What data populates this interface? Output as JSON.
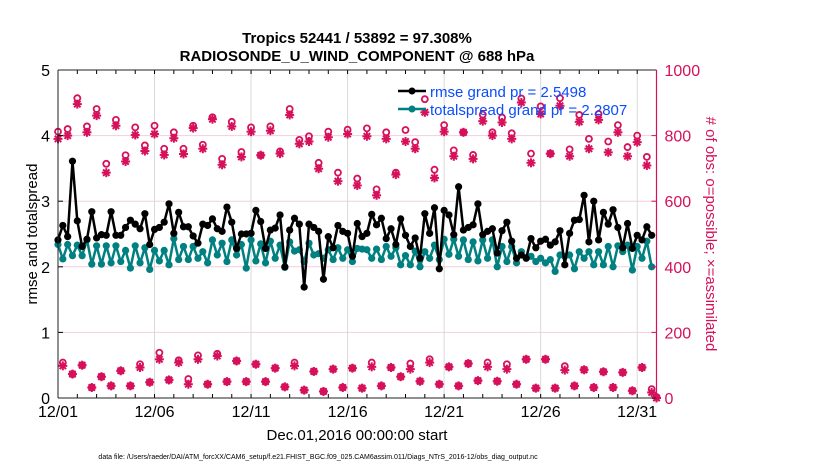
{
  "chart_data": {
    "type": "line",
    "title": [
      "Tropics 52441 / 53892 = 97.308%",
      "RADIOSONDE_U_WIND_COMPONENT @ 688 hPa"
    ],
    "xlabel": "Dec.01,2016 00:00:00 start",
    "ylabel_left": "rmse and totalspread",
    "ylabel_right": "# of obs: o=possible; ×=assimilated",
    "footer": "data file: /Users/raeder/DAI/ATM_forcXX/CAM6_setup/f.e21.FHIST_BGC.f09_025.CAM6assim.011/Diags_NTrS_2016-12/obs_diag_output.nc",
    "x_start": "Dec.01,2016 00:00:00",
    "time_step_hours": 6,
    "x_tick_labels": [
      "12/01",
      "12/06",
      "12/11",
      "12/16",
      "12/21",
      "12/26",
      "12/31"
    ],
    "xlim_days": [
      0,
      31
    ],
    "ylim_left": [
      0,
      5
    ],
    "y_ticks_left": [
      "0",
      "1",
      "2",
      "3",
      "4",
      "5"
    ],
    "ylim_right": [
      0,
      1000
    ],
    "y_ticks_right": [
      "0",
      "200",
      "400",
      "600",
      "800",
      "1000"
    ],
    "grid": true,
    "legend_position": "top-right",
    "colors": {
      "rmse": "#000000",
      "totalspread": "#008080",
      "obs": "#d6105a",
      "legend_text": "#0a4cff"
    },
    "series": [
      {
        "name": "rmse grand pr = 2.5498",
        "axis": "left",
        "marker": "filled-circle",
        "values": [
          2.41,
          2.63,
          2.46,
          3.61,
          2.7,
          2.31,
          2.42,
          2.84,
          2.44,
          2.49,
          2.48,
          2.84,
          2.48,
          2.48,
          2.6,
          2.71,
          2.65,
          2.58,
          2.81,
          2.34,
          2.57,
          2.6,
          2.68,
          2.96,
          2.51,
          2.83,
          2.61,
          2.61,
          2.47,
          2.36,
          2.65,
          2.63,
          2.73,
          2.58,
          2.54,
          2.91,
          2.68,
          2.28,
          2.5,
          2.5,
          2.51,
          2.86,
          2.69,
          2.28,
          2.56,
          2.59,
          2.79,
          2.0,
          2.56,
          2.74,
          2.65,
          1.69,
          2.65,
          2.6,
          2.54,
          1.81,
          2.46,
          2.29,
          2.63,
          2.54,
          2.51,
          2.16,
          2.66,
          2.46,
          2.51,
          2.8,
          2.64,
          2.74,
          2.43,
          2.58,
          2.34,
          2.73,
          2.48,
          2.31,
          2.44,
          2.13,
          2.81,
          2.51,
          2.9,
          1.97,
          2.86,
          2.79,
          2.49,
          3.22,
          2.56,
          2.6,
          2.64,
          2.96,
          2.49,
          2.54,
          2.58,
          2.21,
          2.55,
          2.68,
          2.39,
          2.13,
          2.18,
          2.13,
          2.43,
          2.29,
          2.39,
          2.42,
          2.33,
          2.38,
          2.55,
          2.03,
          2.51,
          2.71,
          2.72,
          3.09,
          2.38,
          3.0,
          2.41,
          2.83,
          2.65,
          2.87,
          2.6,
          2.29,
          2.66,
          2.28,
          2.48,
          2.41,
          2.61,
          2.48
        ]
      },
      {
        "name": "totalspread grand pr = 2.2807",
        "axis": "left",
        "marker": "filled-circle",
        "values": [
          2.34,
          2.12,
          2.34,
          2.17,
          2.33,
          2.17,
          2.41,
          2.04,
          2.32,
          2.04,
          2.32,
          2.06,
          2.32,
          2.08,
          2.25,
          1.98,
          2.32,
          2.06,
          2.29,
          1.96,
          2.25,
          2.09,
          2.25,
          2.03,
          2.43,
          2.11,
          2.31,
          2.11,
          2.31,
          2.13,
          2.23,
          2.06,
          2.41,
          2.18,
          2.36,
          2.08,
          2.41,
          2.18,
          2.34,
          1.98,
          2.41,
          2.09,
          2.35,
          2.06,
          2.39,
          2.13,
          2.33,
          1.99,
          2.38,
          2.24,
          2.26,
          2.08,
          2.36,
          2.18,
          2.2,
          2.13,
          2.26,
          2.11,
          2.29,
          2.13,
          2.26,
          2.08,
          2.28,
          2.27,
          2.26,
          2.13,
          2.27,
          2.11,
          2.31,
          2.16,
          2.29,
          2.03,
          2.17,
          2.03,
          2.24,
          2.0,
          2.23,
          2.13,
          2.33,
          2.11,
          2.42,
          2.19,
          2.42,
          2.16,
          2.41,
          2.11,
          2.38,
          2.09,
          2.41,
          2.13,
          2.41,
          2.0,
          2.31,
          2.08,
          2.31,
          2.06,
          2.23,
          2.14,
          2.16,
          2.08,
          2.13,
          2.06,
          2.11,
          1.93,
          2.18,
          2.16,
          2.18,
          1.97,
          2.23,
          2.13,
          2.23,
          2.03,
          2.23,
          2.03,
          2.31,
          2.0,
          2.32,
          2.23,
          2.33,
          1.95,
          2.31,
          2.13,
          2.39,
          2.0
        ]
      },
      {
        "name": "possible",
        "axis": "right",
        "marker": "o",
        "values": [
          812,
          108,
          820,
          73,
          914,
          100,
          828,
          32,
          881,
          65,
          714,
          37,
          848,
          83,
          740,
          37,
          825,
          103,
          770,
          48,
          830,
          138,
          760,
          55,
          810,
          115,
          760,
          58,
          830,
          130,
          772,
          42,
          856,
          135,
          729,
          50,
          842,
          113,
          750,
          50,
          825,
          103,
          740,
          50,
          828,
          91,
          752,
          34,
          881,
          108,
          787,
          24,
          798,
          81,
          717,
          20,
          812,
          88,
          687,
          32,
          818,
          91,
          669,
          30,
          822,
          108,
          636,
          37,
          810,
          93,
          687,
          65,
          817,
          105,
          780,
          51,
          911,
          118,
          696,
          42,
          832,
          95,
          755,
          37,
          810,
          105,
          741,
          53,
          864,
          108,
          810,
          51,
          855,
          103,
          807,
          42,
          913,
          118,
          745,
          30,
          889,
          118,
          745,
          30,
          914,
          97,
          758,
          37,
          863,
          86,
          790,
          32,
          866,
          80,
          782,
          32,
          832,
          78,
          765,
          22,
          800,
          93,
          735,
          27,
          3
        ]
      },
      {
        "name": "assimilated",
        "axis": "right",
        "marker": "*",
        "values": [
          790,
          98,
          800,
          73,
          896,
          100,
          810,
          32,
          861,
          65,
          687,
          37,
          830,
          83,
          721,
          37,
          802,
          93,
          753,
          48,
          805,
          118,
          741,
          55,
          792,
          108,
          744,
          42,
          823,
          118,
          760,
          42,
          850,
          128,
          711,
          50,
          828,
          113,
          735,
          50,
          812,
          103,
          740,
          50,
          815,
          91,
          745,
          34,
          863,
          98,
          775,
          24,
          782,
          81,
          699,
          20,
          795,
          88,
          661,
          32,
          805,
          91,
          648,
          30,
          798,
          95,
          618,
          37,
          790,
          93,
          681,
          65,
          782,
          88,
          760,
          51,
          871,
          108,
          671,
          42,
          812,
          95,
          737,
          37,
          810,
          105,
          729,
          53,
          844,
          95,
          800,
          51,
          840,
          88,
          790,
          42,
          901,
          118,
          717,
          30,
          866,
          118,
          745,
          30,
          891,
          85,
          737,
          37,
          842,
          86,
          760,
          32,
          848,
          80,
          749,
          32,
          810,
          78,
          737,
          22,
          780,
          93,
          709,
          17,
          0
        ]
      }
    ]
  }
}
